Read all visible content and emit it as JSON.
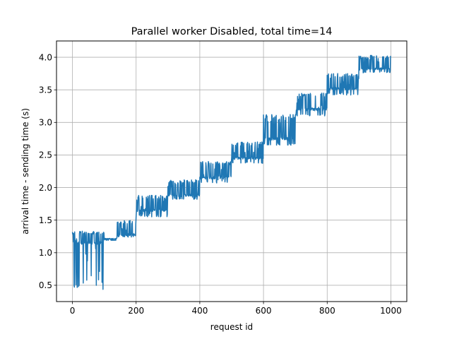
{
  "chart_data": {
    "type": "line",
    "title": "Parallel worker Disabled, total time=14",
    "xlabel": "request id",
    "ylabel": "arrival time - sending time (s)",
    "xlim": [
      -50,
      1050
    ],
    "ylim": [
      0.25,
      4.25
    ],
    "xticks": [
      0,
      200,
      400,
      600,
      800,
      1000
    ],
    "xtick_labels": [
      "0",
      "200",
      "400",
      "600",
      "800",
      "1000"
    ],
    "yticks": [
      0.5,
      1.0,
      1.5,
      2.0,
      2.5,
      3.0,
      3.5,
      4.0
    ],
    "ytick_labels": [
      "0.5",
      "1.0",
      "1.5",
      "2.0",
      "2.5",
      "3.0",
      "3.5",
      "4.0"
    ],
    "grid": true,
    "legend": "none",
    "series": [
      {
        "color": "#1f77b4",
        "x_range": [
          0,
          999
        ],
        "segments": [
          {
            "x_start": 0,
            "x_end": 99,
            "low": 0.43,
            "high": 1.33,
            "base": 1.15
          },
          {
            "x_start": 100,
            "x_end": 139,
            "low": 1.19,
            "high": 1.22,
            "base": 1.2
          },
          {
            "x_start": 140,
            "x_end": 199,
            "low": 1.24,
            "high": 1.5,
            "base": 1.28
          },
          {
            "x_start": 200,
            "x_end": 299,
            "low": 1.55,
            "high": 1.88,
            "base": 1.65
          },
          {
            "x_start": 300,
            "x_end": 399,
            "low": 1.82,
            "high": 2.12,
            "base": 1.88
          },
          {
            "x_start": 400,
            "x_end": 499,
            "low": 2.07,
            "high": 2.4,
            "base": 2.15
          },
          {
            "x_start": 500,
            "x_end": 599,
            "low": 2.37,
            "high": 2.7,
            "base": 2.45
          },
          {
            "x_start": 600,
            "x_end": 699,
            "low": 2.65,
            "high": 3.12,
            "base": 2.75
          },
          {
            "x_start": 700,
            "x_end": 799,
            "low": 3.1,
            "high": 3.45,
            "base": 3.2
          },
          {
            "x_start": 800,
            "x_end": 899,
            "low": 3.42,
            "high": 3.75,
            "base": 3.52
          },
          {
            "x_start": 900,
            "x_end": 999,
            "low": 3.76,
            "high": 4.03,
            "base": 3.82
          }
        ]
      }
    ]
  }
}
